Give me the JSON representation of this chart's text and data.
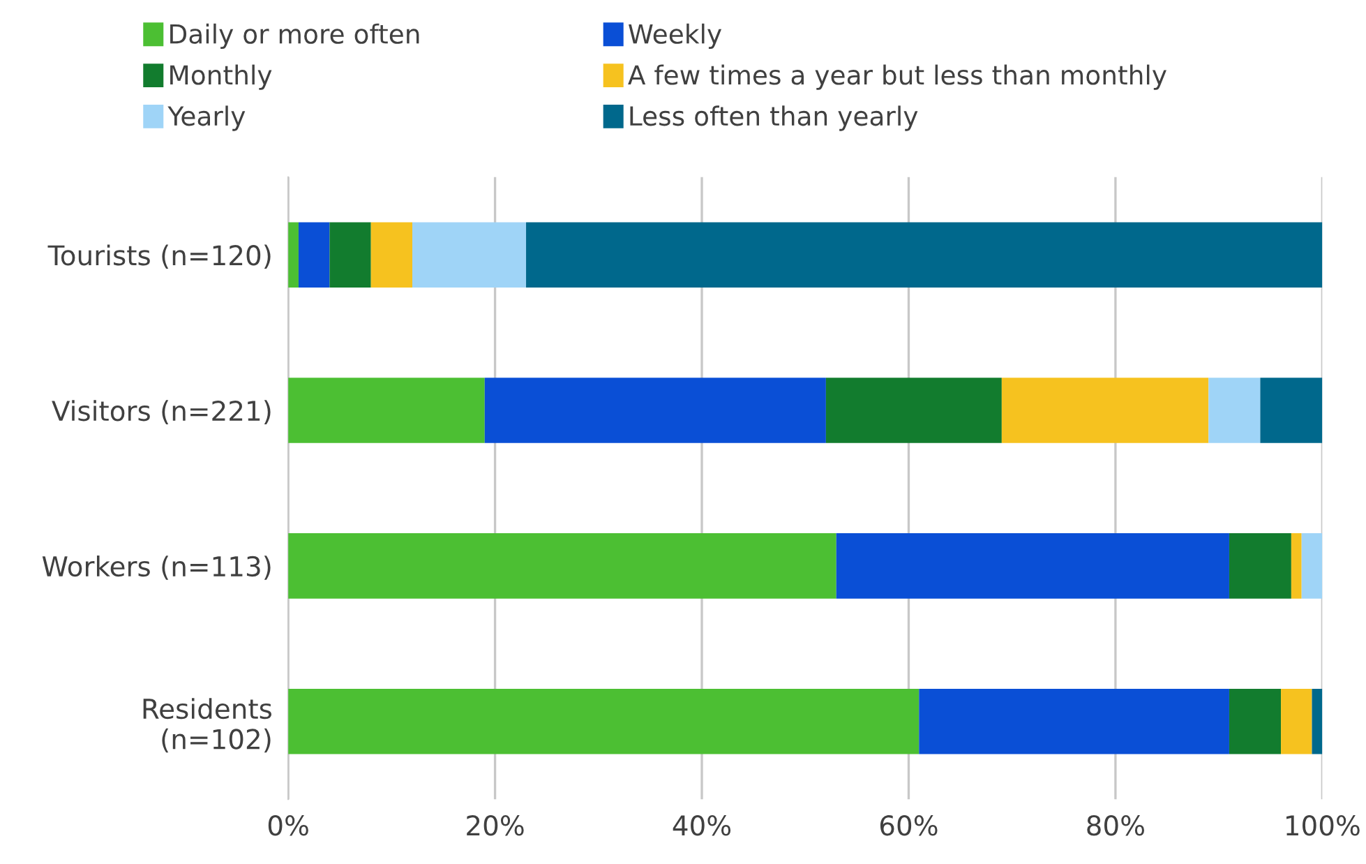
{
  "chart_data": {
    "type": "bar",
    "orientation": "horizontal",
    "stacked": true,
    "categories": [
      "Tourists (n=120)",
      "Visitors (n=221)",
      "Workers (n=113)",
      "Residents\n(n=102)"
    ],
    "series": [
      {
        "name": "Daily or more often",
        "color": "#4cbf33",
        "values": [
          1,
          19,
          53,
          61
        ]
      },
      {
        "name": "Weekly",
        "color": "#0a4fd6",
        "values": [
          3,
          33,
          38,
          30
        ]
      },
      {
        "name": "Monthly",
        "color": "#127c2e",
        "values": [
          4,
          17,
          6,
          5
        ]
      },
      {
        "name": "A few times a year but less than monthly",
        "color": "#f6c21f",
        "values": [
          4,
          20,
          1,
          3
        ]
      },
      {
        "name": "Yearly",
        "color": "#9fd4f7",
        "values": [
          11,
          5,
          2,
          0
        ]
      },
      {
        "name": "Less often than yearly",
        "color": "#00688c",
        "values": [
          77,
          6,
          0,
          1
        ]
      }
    ],
    "xlim": [
      0,
      100
    ],
    "xticks": [
      {
        "value": 0,
        "label": "0%"
      },
      {
        "value": 20,
        "label": "20%"
      },
      {
        "value": 40,
        "label": "40%"
      },
      {
        "value": 60,
        "label": "60%"
      },
      {
        "value": 80,
        "label": "80%"
      },
      {
        "value": 100,
        "label": "100%"
      }
    ],
    "grid": "x",
    "legend": "top"
  }
}
